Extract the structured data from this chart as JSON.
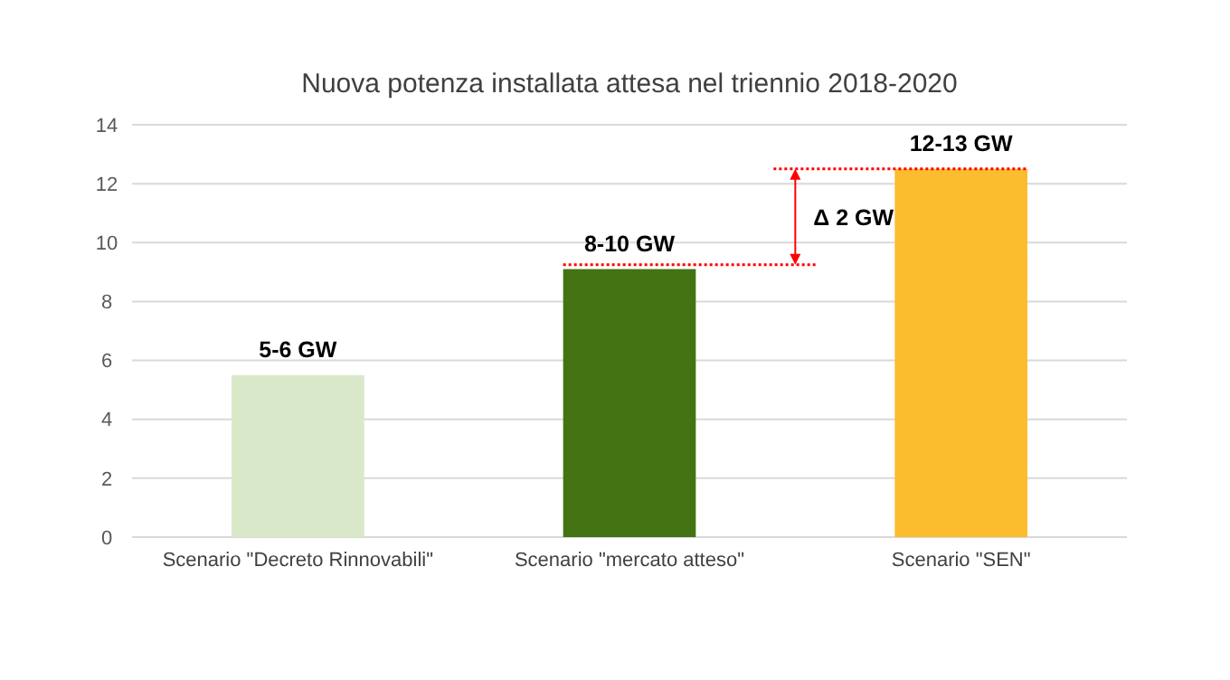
{
  "chart_data": {
    "type": "bar",
    "title": "Nuova potenza installata attesa nel triennio 2018-2020",
    "categories": [
      "Scenario \"Decreto Rinnovabili\"",
      "Scenario \"mercato atteso\"",
      "Scenario \"SEN\""
    ],
    "values": [
      5.5,
      9.1,
      12.5
    ],
    "colors": [
      "#d9e8c9",
      "#437312",
      "#fbbc2e"
    ],
    "value_labels": [
      "5-6 GW",
      "8-10 GW",
      "12-13 GW"
    ],
    "ylim": [
      0,
      14
    ],
    "yticks": [
      0,
      2,
      4,
      6,
      8,
      10,
      12,
      14
    ],
    "grid": "y",
    "ref_lines": [
      {
        "axis": "y",
        "value": 9.25,
        "label": null,
        "color": "#ff0000",
        "line_style": "dotted"
      },
      {
        "axis": "y",
        "value": 12.5,
        "label": null,
        "color": "#ff0000",
        "line_style": "dotted"
      }
    ],
    "annotations": [
      "Δ 2 GW"
    ]
  }
}
